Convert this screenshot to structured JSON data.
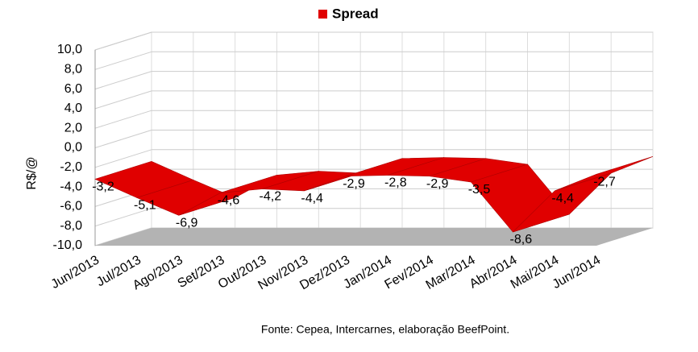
{
  "chart_data": {
    "type": "line3d",
    "legend_title": null,
    "series": [
      {
        "name": "Spread",
        "color": "#e00000",
        "values": [
          -3.2,
          -5.1,
          -6.9,
          -4.6,
          -4.2,
          -4.4,
          -2.9,
          -2.8,
          -2.9,
          -3.5,
          -8.6,
          -4.4,
          -2.7
        ],
        "value_labels": [
          "-3,2",
          "-5,1",
          "-6,9",
          "-4,6",
          "-4,2",
          "-4,4",
          "-2,9",
          "-2,8",
          "-2,9",
          "-3,5",
          "-8,6",
          "-4,4",
          "-2,7"
        ]
      }
    ],
    "categories": [
      "Jun/2013",
      "Jul/2013",
      "Ago/2013",
      "Set/2013",
      "Out/2013",
      "Nov/2013",
      "Dez/2013",
      "Jan/2014",
      "Fev/2014",
      "Mar/2014",
      "Abr/2014",
      "Mai/2014",
      "Jun/2014"
    ],
    "y_label": "R$/@",
    "ylim": [
      -10,
      10
    ],
    "yticks": [
      {
        "value": -10,
        "label": "-10,0"
      },
      {
        "value": -8,
        "label": "-8,0"
      },
      {
        "value": -6,
        "label": "-6,0"
      },
      {
        "value": -4,
        "label": "-4,0"
      },
      {
        "value": -2,
        "label": "-2,0"
      },
      {
        "value": 0,
        "label": "0,0"
      },
      {
        "value": 2,
        "label": "2,0"
      },
      {
        "value": 4,
        "label": "4,0"
      },
      {
        "value": 6,
        "label": "6,0"
      },
      {
        "value": 8,
        "label": "8,0"
      },
      {
        "value": 10,
        "label": "10,0"
      }
    ],
    "grid": true,
    "source": "Fonte: Cepea, Intercarnes, elaboração BeefPoint."
  }
}
